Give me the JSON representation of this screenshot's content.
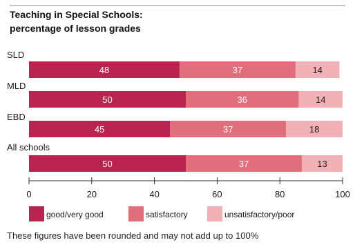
{
  "chart_data": {
    "type": "bar",
    "stacked": true,
    "orientation": "horizontal",
    "title_lines": [
      "Teaching in Special Schools:",
      "percentage of lesson grades"
    ],
    "categories": [
      "SLD",
      "MLD",
      "EBD",
      "All schools"
    ],
    "series": [
      {
        "name": "good/very good",
        "values": [
          48,
          50,
          45,
          50
        ],
        "color": "#b8244f"
      },
      {
        "name": "satisfactory",
        "values": [
          37,
          36,
          37,
          37
        ],
        "color": "#e06f7b"
      },
      {
        "name": "unsatisfactory/poor",
        "values": [
          14,
          14,
          18,
          13
        ],
        "color": "#f2b1b6"
      }
    ],
    "xlim": [
      0,
      100
    ],
    "xticks": [
      0,
      20,
      40,
      60,
      80,
      100
    ],
    "grid": false,
    "legend_position": "bottom"
  },
  "footnote": "These figures have been rounded and may not add up to 100%"
}
